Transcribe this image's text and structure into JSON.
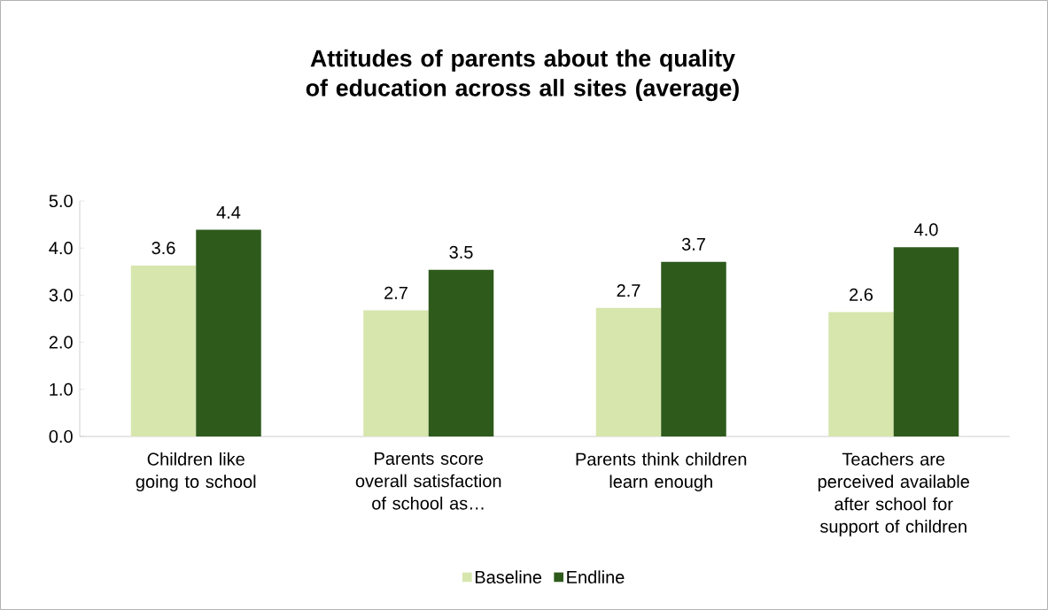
{
  "chart_data": {
    "type": "bar",
    "title": "Attitudes of parents about the quality of education across all sites (average)",
    "categories": [
      "Children like going to school",
      "Parents score overall satisfaction of school as…",
      "Parents think children learn enough",
      "Teachers are perceived available after school for support of children"
    ],
    "series": [
      {
        "name": "Baseline",
        "color": "#d7e6ad",
        "values": [
          3.63,
          2.68,
          2.73,
          2.64
        ],
        "value_labels": [
          "3.6",
          "2.7",
          "2.7",
          "2.6"
        ]
      },
      {
        "name": "Endline",
        "color": "#2e5a1c",
        "values": [
          4.39,
          3.54,
          3.71,
          4.02
        ],
        "value_labels": [
          "4.4",
          "3.5",
          "3.7",
          "4.0"
        ]
      }
    ],
    "ylim": [
      0,
      5
    ],
    "yticks": [
      {
        "value": 0,
        "label": "0.0"
      },
      {
        "value": 1,
        "label": "1.0"
      },
      {
        "value": 2,
        "label": "2.0"
      },
      {
        "value": 3,
        "label": "3.0"
      },
      {
        "value": 4,
        "label": "4.0"
      },
      {
        "value": 5,
        "label": "5.0"
      }
    ],
    "grid": false,
    "legend": "bottom"
  }
}
